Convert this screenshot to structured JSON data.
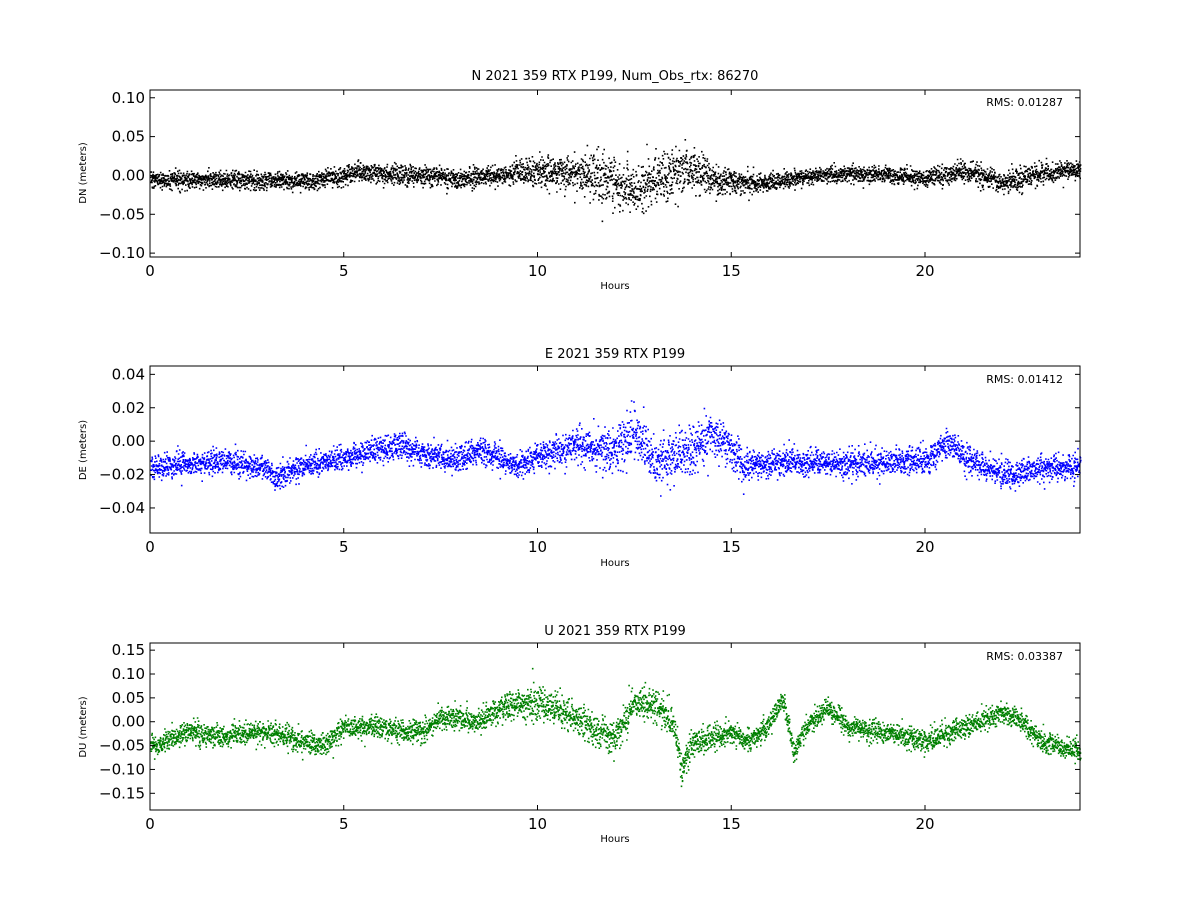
{
  "chart_data": [
    {
      "type": "scatter",
      "title": "N 2021 359 RTX  P199, Num_Obs_rtx: 86270",
      "xlabel": "Hours",
      "ylabel": "DN (meters)",
      "xlim": [
        0,
        24
      ],
      "ylim": [
        -0.105,
        0.11
      ],
      "xticks": [
        0,
        5,
        10,
        15,
        20
      ],
      "xtick_labels": [
        "0",
        "5",
        "10",
        "15",
        "20"
      ],
      "yticks": [
        -0.1,
        -0.05,
        0.0,
        0.05,
        0.1
      ],
      "ytick_labels": [
        "−0.10",
        "−0.05",
        "0.00",
        "0.05",
        "0.10"
      ],
      "annotation": "RMS:  0.01287",
      "annotation_color": "#0000ff",
      "color": "#000000",
      "grid": false,
      "rms": 0.01287,
      "trend": {
        "x": [
          0,
          2,
          4,
          5,
          5.3,
          6,
          8,
          9,
          10,
          11,
          12,
          12.5,
          13,
          13.5,
          14,
          14.5,
          15,
          16,
          17,
          18,
          19,
          20,
          21,
          22,
          23,
          24
        ],
        "y": [
          -0.005,
          -0.005,
          -0.006,
          0.0,
          0.006,
          0.002,
          -0.003,
          0.002,
          0.005,
          0.004,
          -0.005,
          -0.02,
          -0.005,
          0.005,
          0.01,
          -0.005,
          -0.008,
          -0.008,
          0.0,
          0.002,
          0.002,
          -0.003,
          0.008,
          -0.008,
          0.004,
          0.008
        ]
      },
      "spread": {
        "x": [
          0,
          9,
          10,
          11,
          12,
          12.5,
          13,
          13.5,
          14,
          15,
          16,
          20,
          21,
          22,
          24
        ],
        "y": [
          0.011,
          0.013,
          0.017,
          0.025,
          0.033,
          0.032,
          0.03,
          0.036,
          0.026,
          0.016,
          0.011,
          0.011,
          0.015,
          0.014,
          0.012
        ]
      }
    },
    {
      "type": "scatter",
      "title": "E 2021 359 RTX  P199",
      "xlabel": "Hours",
      "ylabel": "DE (meters)",
      "xlim": [
        0,
        24
      ],
      "ylim": [
        -0.055,
        0.045
      ],
      "xticks": [
        0,
        5,
        10,
        15,
        20
      ],
      "xtick_labels": [
        "0",
        "5",
        "10",
        "15",
        "20"
      ],
      "yticks": [
        -0.04,
        -0.02,
        0.0,
        0.02,
        0.04
      ],
      "ytick_labels": [
        "−0.04",
        "−0.02",
        "0.00",
        "0.02",
        "0.04"
      ],
      "annotation": "RMS:  0.01412",
      "annotation_color": "#0000ff",
      "color": "#0000ff",
      "grid": false,
      "rms": 0.01412,
      "trend": {
        "x": [
          0,
          1,
          2,
          3,
          3.2,
          4,
          5,
          6,
          6.5,
          7,
          8,
          8.5,
          9,
          9.5,
          10,
          11,
          12,
          12.5,
          13,
          14,
          14.5,
          15,
          15.3,
          16,
          18,
          19,
          20,
          20.6,
          21,
          22,
          23,
          24
        ],
        "y": [
          -0.015,
          -0.013,
          -0.012,
          -0.016,
          -0.022,
          -0.014,
          -0.01,
          -0.004,
          -0.002,
          -0.008,
          -0.01,
          -0.005,
          -0.01,
          -0.015,
          -0.008,
          -0.003,
          -0.005,
          0.005,
          -0.012,
          -0.005,
          0.005,
          -0.005,
          -0.015,
          -0.012,
          -0.013,
          -0.012,
          -0.012,
          0.0,
          -0.01,
          -0.02,
          -0.016,
          -0.015
        ]
      },
      "spread": {
        "x": [
          0,
          10,
          11,
          12,
          12.5,
          13,
          14,
          14.5,
          15,
          16,
          24
        ],
        "y": [
          0.007,
          0.008,
          0.01,
          0.014,
          0.015,
          0.015,
          0.014,
          0.013,
          0.011,
          0.008,
          0.008
        ]
      }
    },
    {
      "type": "scatter",
      "title": "U 2021 359 RTX  P199",
      "xlabel": "Hours",
      "ylabel": "DU (meters)",
      "xlim": [
        0,
        24
      ],
      "ylim": [
        -0.185,
        0.165
      ],
      "xticks": [
        0,
        5,
        10,
        15,
        20
      ],
      "xtick_labels": [
        "0",
        "5",
        "10",
        "15",
        "20"
      ],
      "yticks": [
        -0.15,
        -0.1,
        -0.05,
        0.0,
        0.05,
        0.1,
        0.15
      ],
      "ytick_labels": [
        "−0.15",
        "−0.10",
        "−0.05",
        "0.00",
        "0.05",
        "0.10",
        "0.15"
      ],
      "annotation": "RMS:  0.03387",
      "annotation_color": "#0000ff",
      "color": "#008000",
      "grid": false,
      "rms": 0.03387,
      "trend": {
        "x": [
          0,
          1,
          2,
          3,
          3.5,
          4,
          4.5,
          5,
          6,
          7,
          7.5,
          8,
          8.5,
          9,
          10,
          10.5,
          11,
          11.5,
          12,
          12.5,
          13,
          13.5,
          13.7,
          14,
          15,
          15.5,
          16,
          16.3,
          16.6,
          17,
          17.5,
          18,
          19,
          20,
          21,
          22,
          22.5,
          23,
          24
        ],
        "y": [
          -0.05,
          -0.02,
          -0.03,
          -0.02,
          -0.03,
          -0.04,
          -0.05,
          -0.01,
          -0.01,
          -0.02,
          0.01,
          0.01,
          0.0,
          0.03,
          0.04,
          0.03,
          0.01,
          -0.02,
          -0.03,
          0.04,
          0.04,
          0.0,
          -0.1,
          -0.04,
          -0.02,
          -0.04,
          0.0,
          0.05,
          -0.06,
          0.0,
          0.03,
          -0.01,
          -0.02,
          -0.04,
          -0.01,
          0.02,
          0.0,
          -0.04,
          -0.06
        ]
      },
      "spread": {
        "x": [
          0,
          9,
          10,
          11,
          12,
          13,
          14,
          15,
          24
        ],
        "y": [
          0.022,
          0.025,
          0.035,
          0.035,
          0.032,
          0.033,
          0.03,
          0.024,
          0.022
        ]
      }
    }
  ]
}
